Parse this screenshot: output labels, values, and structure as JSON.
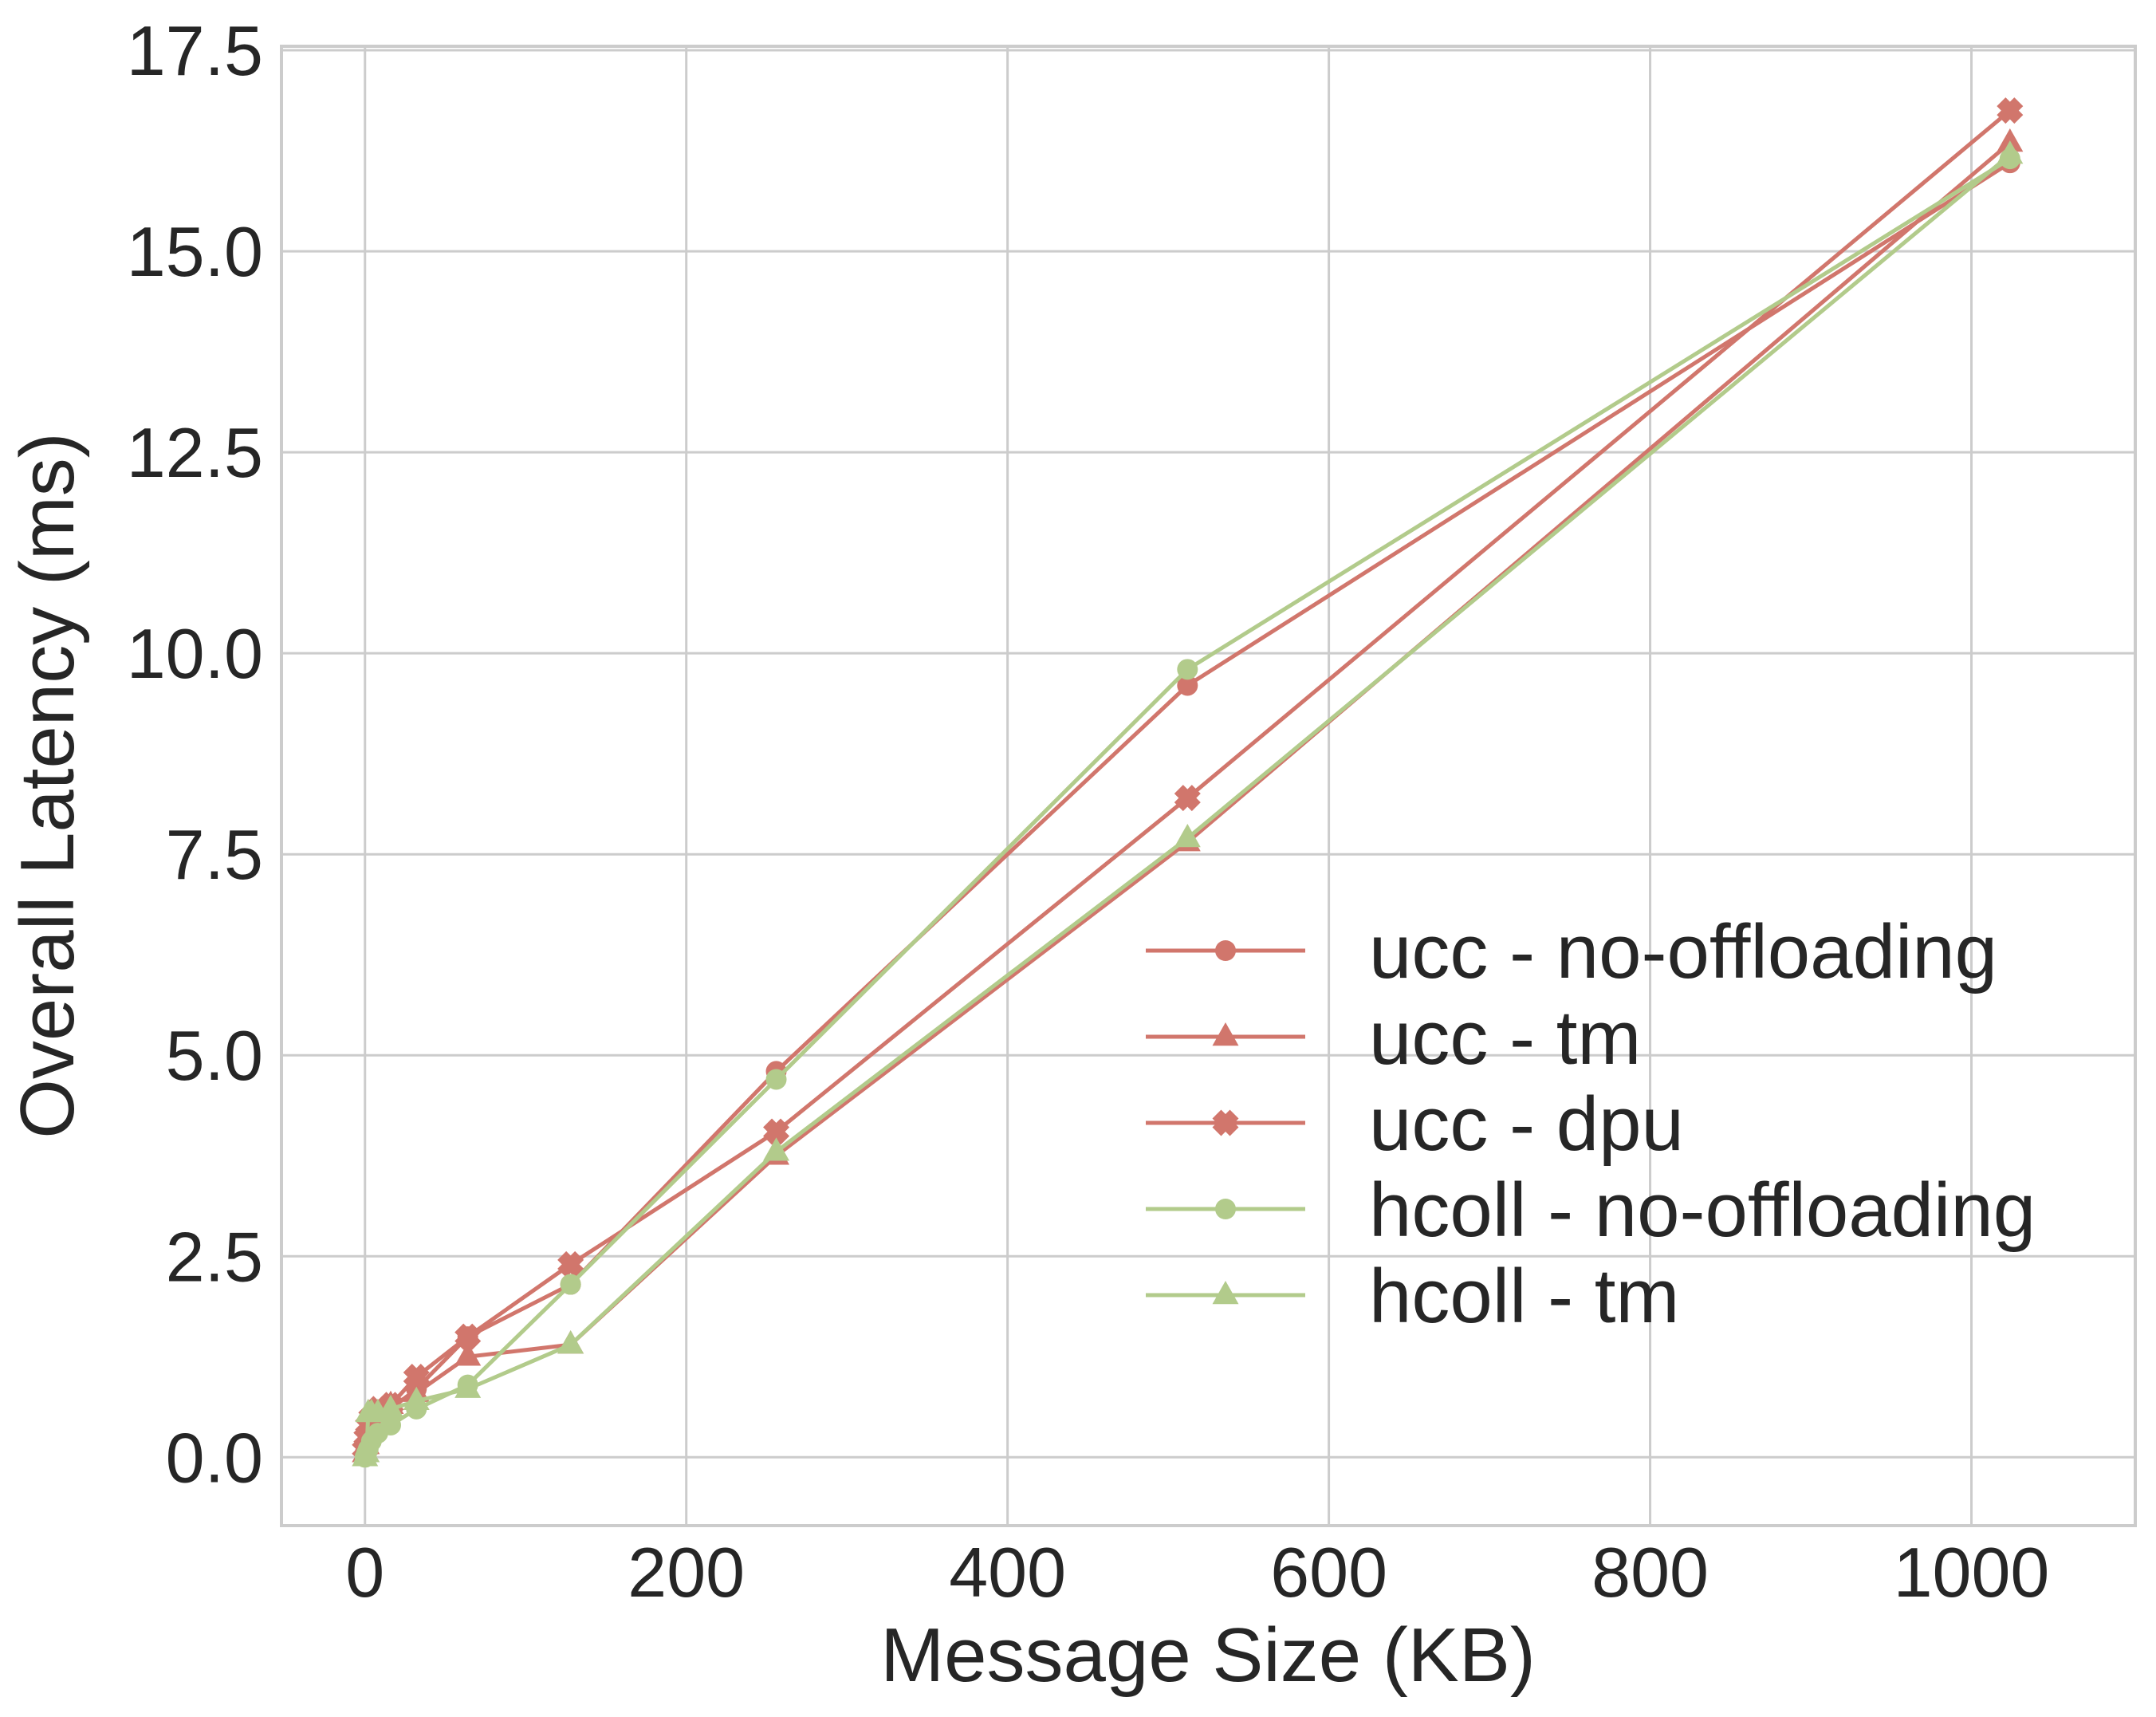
{
  "chart_data": {
    "type": "line",
    "title": "",
    "xlabel": "Message Size (KB)",
    "ylabel": "Overall Latency (ms)",
    "xlim": [
      -52,
      1102
    ],
    "ylim": [
      -0.85,
      17.55
    ],
    "xticks": [
      0,
      200,
      400,
      600,
      800,
      1000
    ],
    "xtick_labels": [
      "0",
      "200",
      "400",
      "600",
      "800",
      "1000"
    ],
    "yticks": [
      0.0,
      2.5,
      5.0,
      7.5,
      10.0,
      12.5,
      15.0,
      17.5
    ],
    "ytick_labels": [
      "0.0",
      "2.5",
      "5.0",
      "7.5",
      "10.0",
      "12.5",
      "15.0",
      "17.5"
    ],
    "grid": true,
    "legend_position": "lower-right",
    "x": [
      0,
      1,
      2,
      4,
      8,
      16,
      32,
      64,
      128,
      256,
      512,
      1024
    ],
    "series": [
      {
        "name": "ucc - no-offloading",
        "color": "#d1766c",
        "marker": "circle",
        "values": [
          0.05,
          0.1,
          0.2,
          0.35,
          0.5,
          0.6,
          0.85,
          1.5,
          2.15,
          4.8,
          9.6,
          16.1
        ]
      },
      {
        "name": "ucc - tm",
        "color": "#d1766c",
        "marker": "triangle",
        "values": [
          0.05,
          0.15,
          0.3,
          0.45,
          0.55,
          0.65,
          0.8,
          1.25,
          1.4,
          3.75,
          7.65,
          16.35
        ]
      },
      {
        "name": "ucc - dpu",
        "color": "#d1766c",
        "marker": "x",
        "values": [
          0.1,
          0.25,
          0.4,
          0.5,
          0.6,
          0.65,
          1.0,
          1.5,
          2.4,
          4.05,
          8.2,
          16.75
        ]
      },
      {
        "name": "hcoll - no-offloading",
        "color": "#b2cb8b",
        "marker": "circle",
        "values": [
          0.0,
          0.05,
          0.1,
          0.2,
          0.3,
          0.4,
          0.6,
          0.9,
          2.15,
          4.7,
          9.8,
          16.15
        ]
      },
      {
        "name": "hcoll - tm",
        "color": "#b2cb8b",
        "marker": "triangle",
        "values": [
          0.0,
          0.05,
          0.55,
          0.55,
          0.55,
          0.6,
          0.7,
          0.85,
          1.4,
          3.8,
          7.7,
          16.2
        ]
      }
    ]
  }
}
